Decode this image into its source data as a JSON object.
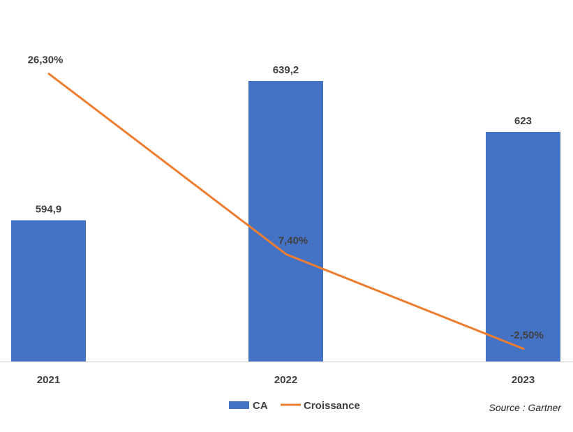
{
  "chart_data": {
    "type": "bar",
    "categories": [
      "2021",
      "2022",
      "2023"
    ],
    "series": [
      {
        "name": "CA",
        "type": "bar",
        "axis": "left",
        "values": [
          594.9,
          639.2,
          623
        ],
        "labels": [
          "594,9",
          "639,2",
          "623"
        ],
        "color": "#4472C4"
      },
      {
        "name": "Croissance",
        "type": "line",
        "axis": "right",
        "values": [
          26.3,
          7.4,
          -2.5
        ],
        "labels": [
          "26,30%",
          "7,40%",
          "-2,50%"
        ],
        "color": "#ED7D31"
      }
    ],
    "title": "",
    "xlabel": "",
    "ylabel": "",
    "y_left_range": [
      550,
      650
    ],
    "y_right_range": [
      -5,
      30
    ],
    "grid": false,
    "legend": "bottom-center"
  },
  "source": "Source : Gartner",
  "axis_color": "#D9D9D9"
}
